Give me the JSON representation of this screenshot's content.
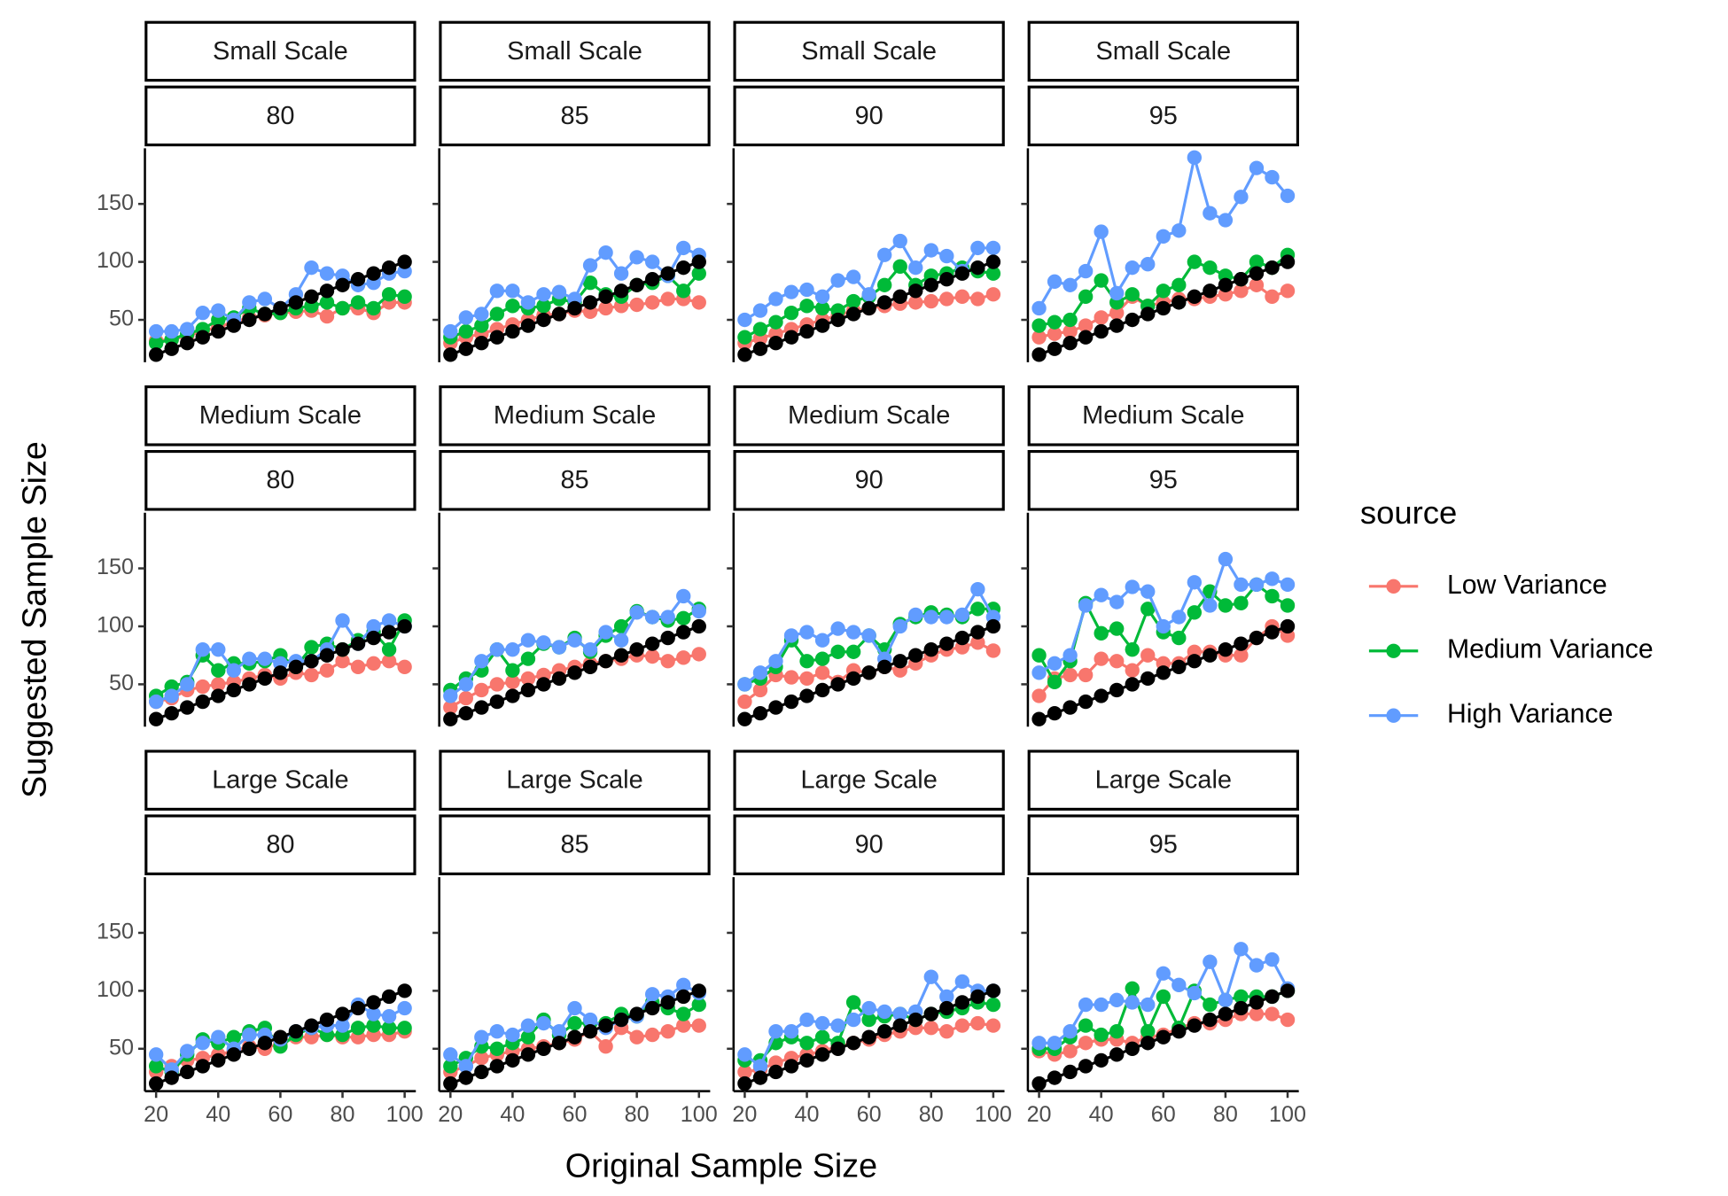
{
  "chart_data": {
    "type": "line",
    "x_label": "Original Sample Size",
    "y_label": "Suggested Sample Size",
    "legend_title": "source",
    "x": [
      20,
      25,
      30,
      35,
      40,
      45,
      50,
      55,
      60,
      65,
      70,
      75,
      80,
      85,
      90,
      95,
      100
    ],
    "xlim": [
      16.4,
      103.6
    ],
    "xticks": [
      20,
      40,
      60,
      80,
      100
    ],
    "ylim": [
      13.4,
      198
    ],
    "yticks": [
      50,
      100,
      150
    ],
    "series": [
      {
        "name": "Low Variance",
        "color": "#F8766D"
      },
      {
        "name": "Medium Variance",
        "color": "#00BA38"
      },
      {
        "name": "High Variance",
        "color": "#619CFF"
      }
    ],
    "reference": {
      "color": "#000000",
      "values": [
        20,
        25,
        30,
        35,
        40,
        45,
        50,
        55,
        60,
        65,
        70,
        75,
        80,
        85,
        90,
        95,
        100
      ]
    },
    "panels": [
      {
        "strip": [
          "Small Scale",
          "80"
        ],
        "values": [
          [
            32,
            33,
            36,
            40,
            44,
            48,
            52,
            54,
            56,
            57,
            58,
            53,
            60,
            60,
            56,
            65,
            65
          ],
          [
            30,
            33,
            38,
            42,
            50,
            52,
            60,
            55,
            56,
            60,
            62,
            65,
            60,
            65,
            60,
            72,
            70
          ],
          [
            40,
            40,
            42,
            56,
            58,
            50,
            65,
            68,
            60,
            72,
            95,
            90,
            88,
            80,
            82,
            90,
            92
          ]
        ]
      },
      {
        "strip": [
          "Small Scale",
          "85"
        ],
        "values": [
          [
            30,
            35,
            38,
            42,
            46,
            50,
            54,
            55,
            58,
            57,
            60,
            62,
            63,
            65,
            68,
            68,
            65
          ],
          [
            35,
            40,
            45,
            55,
            62,
            60,
            62,
            68,
            65,
            82,
            72,
            70,
            80,
            82,
            88,
            75,
            90
          ],
          [
            40,
            52,
            55,
            75,
            75,
            65,
            72,
            74,
            68,
            97,
            108,
            90,
            104,
            100,
            88,
            112,
            106
          ]
        ]
      },
      {
        "strip": [
          "Small Scale",
          "90"
        ],
        "values": [
          [
            30,
            34,
            38,
            42,
            46,
            50,
            54,
            58,
            60,
            62,
            64,
            65,
            66,
            68,
            70,
            68,
            72
          ],
          [
            35,
            42,
            48,
            56,
            62,
            60,
            58,
            66,
            70,
            80,
            96,
            80,
            88,
            90,
            95,
            92,
            90
          ],
          [
            50,
            58,
            68,
            74,
            76,
            70,
            84,
            87,
            72,
            106,
            118,
            95,
            110,
            105,
            92,
            112,
            112
          ]
        ]
      },
      {
        "strip": [
          "Small Scale",
          "95"
        ],
        "values": [
          [
            35,
            38,
            40,
            45,
            52,
            56,
            70,
            62,
            65,
            68,
            68,
            70,
            72,
            75,
            80,
            70,
            75
          ],
          [
            45,
            48,
            50,
            70,
            84,
            65,
            72,
            62,
            75,
            80,
            100,
            95,
            88,
            85,
            100,
            95,
            106
          ],
          [
            60,
            83,
            80,
            92,
            126,
            73,
            95,
            98,
            122,
            127,
            190,
            142,
            136,
            156,
            181,
            173,
            157
          ]
        ]
      },
      {
        "strip": [
          "Medium Scale",
          "80"
        ],
        "values": [
          [
            35,
            38,
            45,
            48,
            50,
            52,
            55,
            58,
            55,
            60,
            58,
            62,
            70,
            65,
            68,
            70,
            65
          ],
          [
            40,
            48,
            52,
            75,
            62,
            68,
            68,
            70,
            75,
            65,
            82,
            85,
            80,
            88,
            95,
            80,
            105
          ],
          [
            35,
            40,
            50,
            80,
            80,
            62,
            72,
            72,
            68,
            70,
            70,
            80,
            105,
            85,
            100,
            105,
            100
          ]
        ]
      },
      {
        "strip": [
          "Medium Scale",
          "85"
        ],
        "values": [
          [
            30,
            38,
            45,
            50,
            52,
            55,
            58,
            62,
            65,
            68,
            70,
            72,
            75,
            74,
            70,
            73,
            76
          ],
          [
            45,
            55,
            62,
            80,
            62,
            72,
            85,
            82,
            90,
            78,
            92,
            100,
            113,
            108,
            105,
            107,
            115
          ],
          [
            40,
            50,
            70,
            80,
            80,
            88,
            86,
            82,
            88,
            80,
            95,
            88,
            112,
            108,
            108,
            126,
            113
          ]
        ]
      },
      {
        "strip": [
          "Medium Scale",
          "90"
        ],
        "values": [
          [
            35,
            45,
            58,
            56,
            55,
            60,
            52,
            62,
            60,
            65,
            62,
            68,
            75,
            80,
            82,
            86,
            79
          ],
          [
            50,
            55,
            65,
            88,
            70,
            72,
            78,
            78,
            92,
            80,
            102,
            108,
            112,
            110,
            108,
            115,
            115
          ],
          [
            50,
            60,
            70,
            92,
            95,
            88,
            98,
            95,
            92,
            72,
            100,
            110,
            108,
            108,
            110,
            132,
            108
          ]
        ]
      },
      {
        "strip": [
          "Medium Scale",
          "95"
        ],
        "values": [
          [
            40,
            55,
            58,
            58,
            72,
            70,
            62,
            75,
            68,
            68,
            78,
            78,
            75,
            75,
            90,
            100,
            92
          ],
          [
            75,
            52,
            70,
            120,
            94,
            98,
            80,
            115,
            95,
            90,
            112,
            130,
            118,
            120,
            136,
            126,
            118
          ],
          [
            60,
            68,
            75,
            118,
            127,
            121,
            134,
            130,
            100,
            108,
            138,
            118,
            158,
            136,
            136,
            141,
            136
          ]
        ]
      },
      {
        "strip": [
          "Large Scale",
          "80"
        ],
        "values": [
          [
            30,
            35,
            40,
            42,
            45,
            48,
            52,
            50,
            55,
            60,
            60,
            62,
            60,
            60,
            62,
            62,
            65
          ],
          [
            35,
            30,
            45,
            58,
            55,
            60,
            65,
            68,
            52,
            62,
            68,
            62,
            62,
            68,
            70,
            68,
            68
          ],
          [
            45,
            32,
            48,
            55,
            60,
            50,
            62,
            62,
            58,
            65,
            68,
            70,
            70,
            88,
            80,
            78,
            85
          ]
        ]
      },
      {
        "strip": [
          "Large Scale",
          "85"
        ],
        "values": [
          [
            30,
            35,
            42,
            45,
            48,
            50,
            52,
            55,
            58,
            65,
            52,
            68,
            60,
            62,
            65,
            70,
            70
          ],
          [
            35,
            42,
            52,
            50,
            55,
            60,
            75,
            62,
            72,
            72,
            72,
            80,
            78,
            90,
            85,
            80,
            88
          ],
          [
            45,
            35,
            60,
            65,
            62,
            70,
            72,
            65,
            85,
            75,
            68,
            75,
            78,
            97,
            95,
            105,
            98
          ]
        ]
      },
      {
        "strip": [
          "Large Scale",
          "90"
        ],
        "values": [
          [
            30,
            32,
            38,
            42,
            45,
            48,
            52,
            55,
            58,
            62,
            65,
            68,
            68,
            65,
            70,
            72,
            70
          ],
          [
            40,
            40,
            55,
            60,
            55,
            60,
            55,
            90,
            75,
            78,
            80,
            75,
            80,
            82,
            85,
            90,
            88
          ],
          [
            45,
            35,
            65,
            65,
            75,
            72,
            70,
            75,
            85,
            82,
            80,
            82,
            112,
            95,
            108,
            100,
            100
          ]
        ]
      },
      {
        "strip": [
          "Large Scale",
          "95"
        ],
        "values": [
          [
            48,
            45,
            48,
            55,
            58,
            58,
            55,
            60,
            62,
            68,
            72,
            72,
            75,
            80,
            80,
            80,
            75
          ],
          [
            50,
            50,
            60,
            70,
            62,
            65,
            102,
            65,
            95,
            68,
            100,
            88,
            92,
            95,
            95,
            95,
            100
          ],
          [
            55,
            55,
            65,
            88,
            88,
            92,
            90,
            88,
            115,
            105,
            98,
            125,
            92,
            136,
            122,
            127,
            102
          ]
        ]
      }
    ]
  }
}
